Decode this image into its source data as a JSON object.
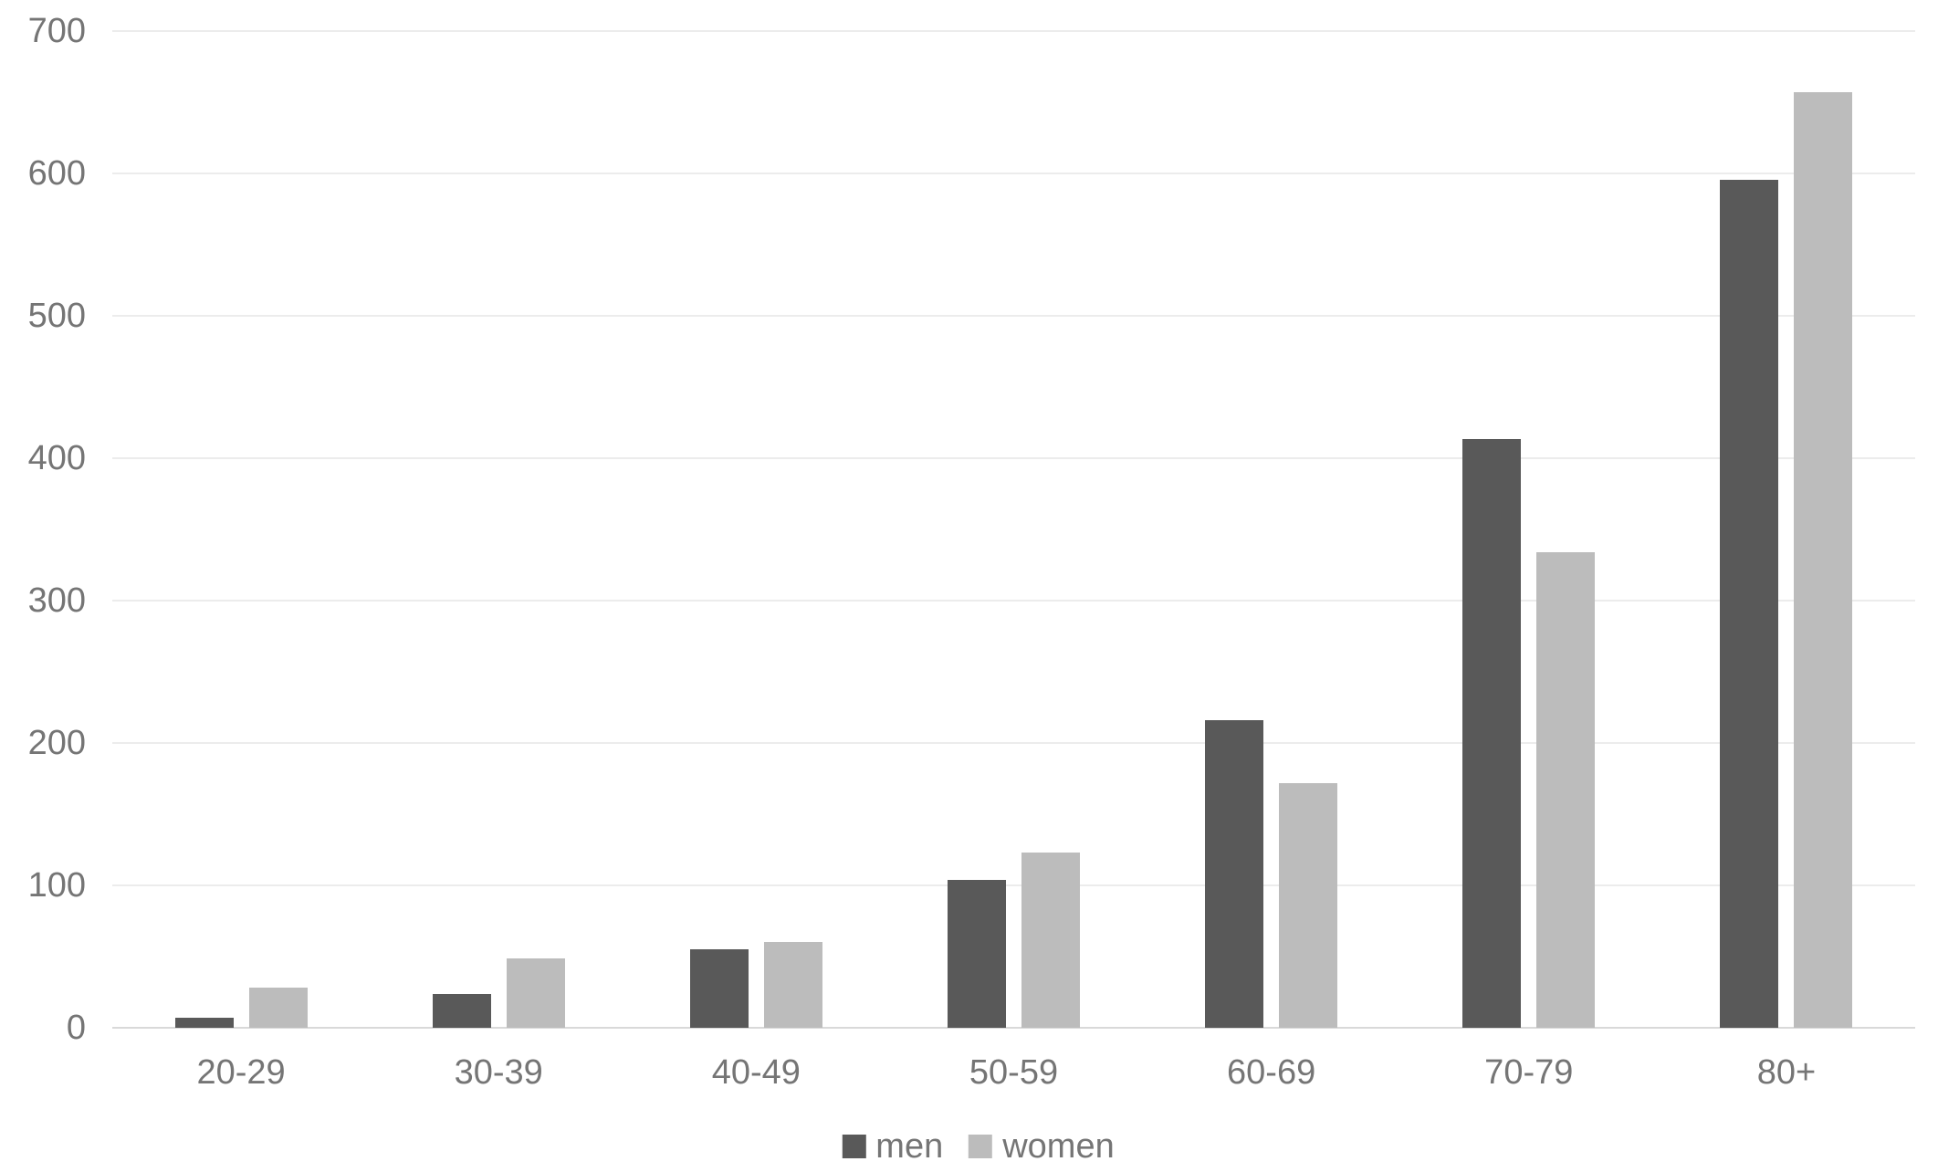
{
  "chart_data": {
    "type": "bar",
    "title": "",
    "categories": [
      "20-29",
      "30-39",
      "40-49",
      "50-59",
      "60-69",
      "70-79",
      "80+"
    ],
    "series": [
      {
        "name": "men",
        "color": "#595959",
        "values": [
          7,
          24,
          55,
          104,
          216,
          413,
          595
        ]
      },
      {
        "name": "women",
        "color": "#bcbcbc",
        "values": [
          28,
          49,
          60,
          123,
          172,
          334,
          657
        ]
      }
    ],
    "xlabel": "",
    "ylabel": "",
    "ylim": [
      0,
      700
    ],
    "yticks": [
      0,
      100,
      200,
      300,
      400,
      500,
      600,
      700
    ],
    "grid": true,
    "legend_position": "bottom-center",
    "colors": {
      "grid": "#ececec",
      "baseline": "#d9d9d9",
      "tick_text": "#757575",
      "background": "#ffffff"
    }
  }
}
